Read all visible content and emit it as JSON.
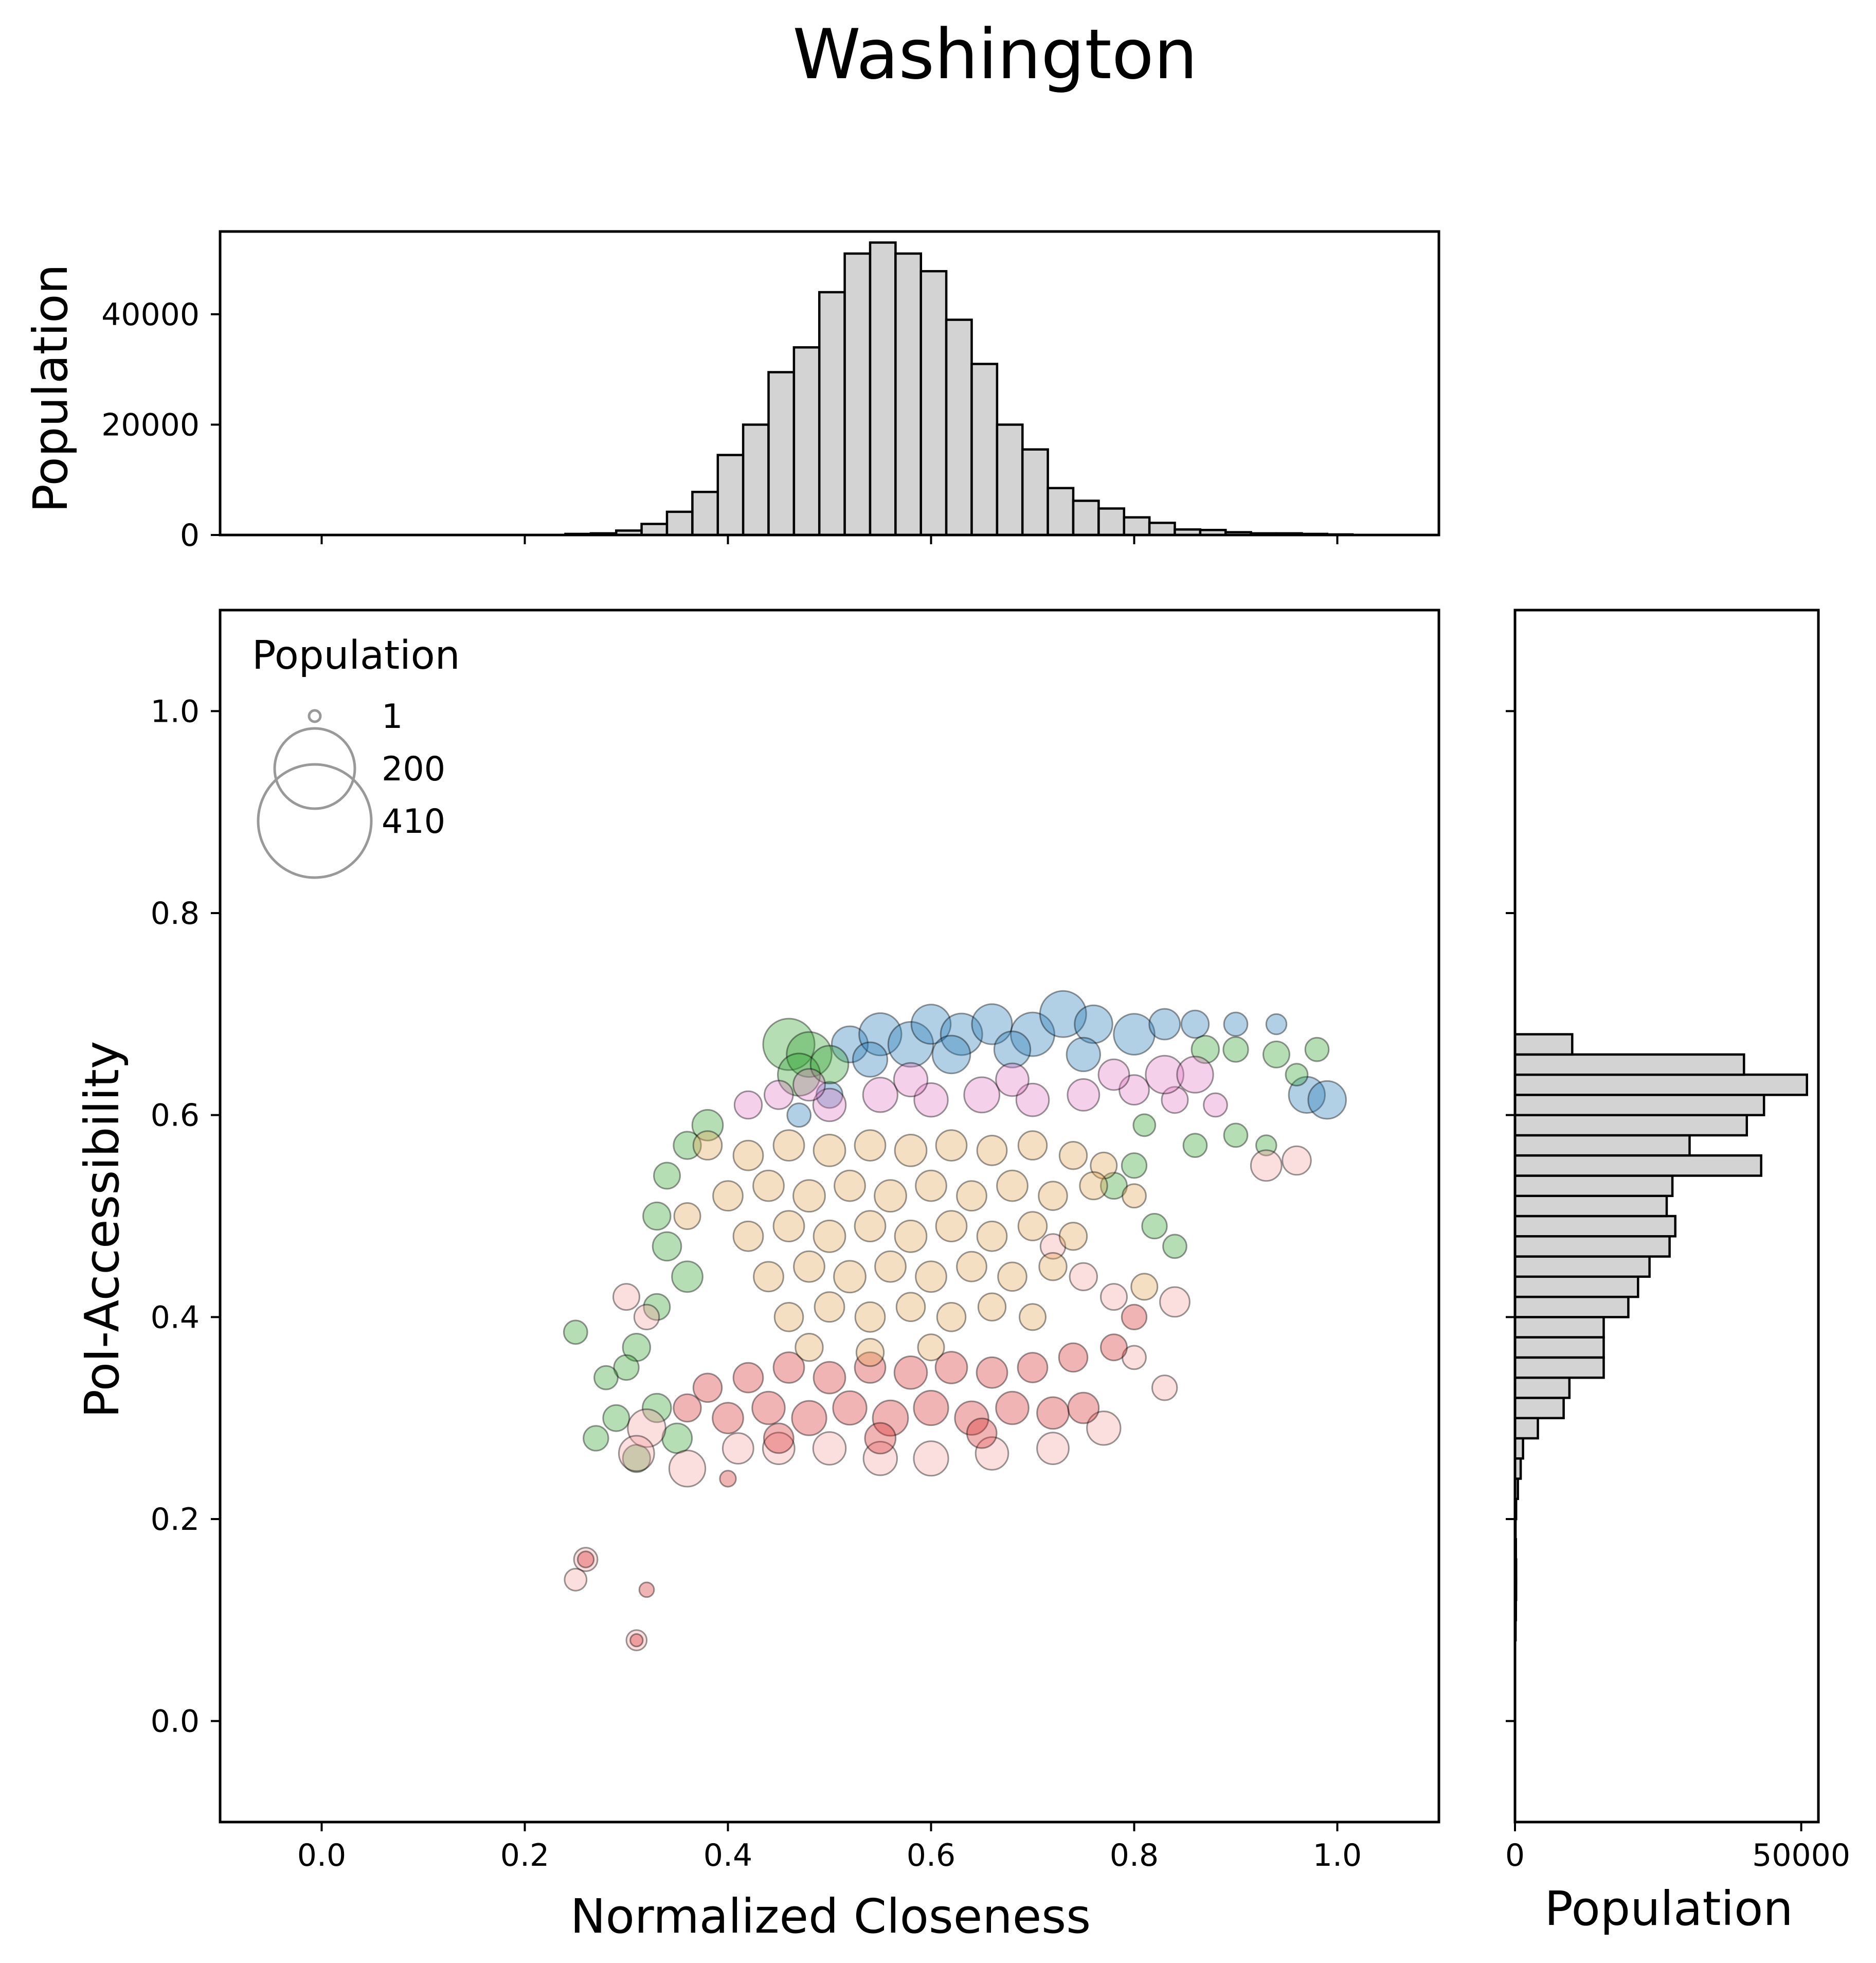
{
  "chart_data": {
    "type": "scatter",
    "title": "Washington",
    "xlabel": "Normalized Closeness",
    "ylabel": "PoI-Accessibility",
    "xlim": [
      -0.1,
      1.1
    ],
    "ylim": [
      -0.1,
      1.1
    ],
    "xticks": [
      "0.0",
      "0.2",
      "0.4",
      "0.6",
      "0.8",
      "1.0"
    ],
    "yticks": [
      "0.0",
      "0.2",
      "0.4",
      "0.6",
      "0.8",
      "1.0"
    ],
    "size_legend": {
      "title": "Population",
      "placement": "top-left",
      "entries": [
        {
          "label": "1",
          "value": 1
        },
        {
          "label": "200",
          "value": 200
        },
        {
          "label": "410",
          "value": 410
        }
      ]
    },
    "series": [
      {
        "color": "#1f77b4",
        "points": [
          [
            0.52,
            0.67,
            180
          ],
          [
            0.55,
            0.68,
            260
          ],
          [
            0.58,
            0.67,
            300
          ],
          [
            0.6,
            0.69,
            220
          ],
          [
            0.63,
            0.68,
            250
          ],
          [
            0.66,
            0.69,
            230
          ],
          [
            0.7,
            0.68,
            280
          ],
          [
            0.73,
            0.7,
            320
          ],
          [
            0.76,
            0.69,
            200
          ],
          [
            0.8,
            0.68,
            240
          ],
          [
            0.83,
            0.69,
            120
          ],
          [
            0.86,
            0.69,
            90
          ],
          [
            0.9,
            0.69,
            60
          ],
          [
            0.94,
            0.69,
            40
          ],
          [
            0.54,
            0.655,
            160
          ],
          [
            0.62,
            0.66,
            200
          ],
          [
            0.68,
            0.665,
            180
          ],
          [
            0.75,
            0.66,
            150
          ],
          [
            0.97,
            0.62,
            180
          ],
          [
            0.99,
            0.615,
            200
          ],
          [
            0.47,
            0.6,
            60
          ],
          [
            0.5,
            0.62,
            80
          ]
        ]
      },
      {
        "color": "#2ca02c",
        "points": [
          [
            0.46,
            0.67,
            410
          ],
          [
            0.48,
            0.66,
            300
          ],
          [
            0.47,
            0.64,
            260
          ],
          [
            0.5,
            0.65,
            200
          ],
          [
            0.87,
            0.665,
            90
          ],
          [
            0.9,
            0.665,
            70
          ],
          [
            0.94,
            0.66,
            80
          ],
          [
            0.98,
            0.665,
            60
          ],
          [
            0.96,
            0.64,
            50
          ],
          [
            0.9,
            0.58,
            60
          ],
          [
            0.93,
            0.57,
            40
          ],
          [
            0.38,
            0.59,
            120
          ],
          [
            0.36,
            0.57,
            90
          ],
          [
            0.34,
            0.54,
            80
          ],
          [
            0.33,
            0.5,
            90
          ],
          [
            0.34,
            0.47,
            100
          ],
          [
            0.36,
            0.44,
            120
          ],
          [
            0.33,
            0.41,
            80
          ],
          [
            0.31,
            0.37,
            90
          ],
          [
            0.3,
            0.35,
            70
          ],
          [
            0.28,
            0.34,
            60
          ],
          [
            0.29,
            0.3,
            80
          ],
          [
            0.27,
            0.28,
            70
          ],
          [
            0.25,
            0.385,
            60
          ],
          [
            0.31,
            0.26,
            90
          ],
          [
            0.35,
            0.28,
            110
          ],
          [
            0.33,
            0.31,
            100
          ],
          [
            0.82,
            0.49,
            70
          ],
          [
            0.84,
            0.47,
            60
          ],
          [
            0.78,
            0.53,
            80
          ],
          [
            0.8,
            0.55,
            70
          ],
          [
            0.86,
            0.57,
            60
          ],
          [
            0.81,
            0.59,
            50
          ]
        ]
      },
      {
        "color": "#e377c2",
        "points": [
          [
            0.42,
            0.61,
            90
          ],
          [
            0.45,
            0.62,
            100
          ],
          [
            0.5,
            0.61,
            140
          ],
          [
            0.55,
            0.62,
            160
          ],
          [
            0.6,
            0.615,
            150
          ],
          [
            0.65,
            0.62,
            170
          ],
          [
            0.7,
            0.615,
            140
          ],
          [
            0.75,
            0.62,
            130
          ],
          [
            0.8,
            0.625,
            110
          ],
          [
            0.84,
            0.615,
            80
          ],
          [
            0.88,
            0.61,
            60
          ],
          [
            0.48,
            0.63,
            130
          ],
          [
            0.58,
            0.635,
            150
          ],
          [
            0.68,
            0.635,
            140
          ],
          [
            0.78,
            0.64,
            120
          ],
          [
            0.83,
            0.64,
            200
          ],
          [
            0.86,
            0.64,
            180
          ]
        ]
      },
      {
        "color": "#f4a0a0",
        "points": [
          [
            0.93,
            0.55,
            120
          ],
          [
            0.96,
            0.555,
            100
          ],
          [
            0.84,
            0.415,
            110
          ],
          [
            0.83,
            0.33,
            70
          ],
          [
            0.77,
            0.29,
            150
          ],
          [
            0.72,
            0.27,
            130
          ],
          [
            0.66,
            0.265,
            140
          ],
          [
            0.6,
            0.26,
            160
          ],
          [
            0.55,
            0.26,
            150
          ],
          [
            0.5,
            0.27,
            140
          ],
          [
            0.45,
            0.27,
            130
          ],
          [
            0.41,
            0.27,
            120
          ],
          [
            0.36,
            0.25,
            180
          ],
          [
            0.32,
            0.29,
            200
          ],
          [
            0.31,
            0.265,
            170
          ],
          [
            0.3,
            0.42,
            80
          ],
          [
            0.32,
            0.4,
            70
          ],
          [
            0.8,
            0.36,
            60
          ],
          [
            0.26,
            0.16,
            60
          ],
          [
            0.25,
            0.14,
            50
          ],
          [
            0.31,
            0.08,
            40
          ],
          [
            0.75,
            0.44,
            90
          ],
          [
            0.78,
            0.42,
            80
          ],
          [
            0.72,
            0.47,
            70
          ]
        ]
      },
      {
        "color": "#d62728",
        "points": [
          [
            0.4,
            0.3,
            120
          ],
          [
            0.44,
            0.31,
            140
          ],
          [
            0.48,
            0.3,
            160
          ],
          [
            0.52,
            0.31,
            150
          ],
          [
            0.56,
            0.3,
            170
          ],
          [
            0.6,
            0.31,
            160
          ],
          [
            0.64,
            0.3,
            150
          ],
          [
            0.68,
            0.31,
            140
          ],
          [
            0.72,
            0.305,
            130
          ],
          [
            0.75,
            0.31,
            120
          ],
          [
            0.42,
            0.34,
            110
          ],
          [
            0.46,
            0.35,
            120
          ],
          [
            0.5,
            0.34,
            130
          ],
          [
            0.54,
            0.35,
            120
          ],
          [
            0.58,
            0.345,
            140
          ],
          [
            0.62,
            0.35,
            130
          ],
          [
            0.66,
            0.345,
            120
          ],
          [
            0.7,
            0.35,
            110
          ],
          [
            0.74,
            0.36,
            100
          ],
          [
            0.78,
            0.37,
            80
          ],
          [
            0.45,
            0.28,
            110
          ],
          [
            0.55,
            0.28,
            120
          ],
          [
            0.65,
            0.285,
            110
          ],
          [
            0.38,
            0.33,
            100
          ],
          [
            0.36,
            0.31,
            90
          ],
          [
            0.8,
            0.4,
            70
          ],
          [
            0.26,
            0.16,
            20
          ],
          [
            0.32,
            0.13,
            15
          ],
          [
            0.31,
            0.08,
            8
          ],
          [
            0.4,
            0.24,
            20
          ]
        ]
      },
      {
        "color": "#e1a250",
        "points": [
          [
            0.38,
            0.57,
            100
          ],
          [
            0.42,
            0.56,
            110
          ],
          [
            0.46,
            0.57,
            120
          ],
          [
            0.5,
            0.565,
            130
          ],
          [
            0.54,
            0.57,
            120
          ],
          [
            0.58,
            0.565,
            130
          ],
          [
            0.62,
            0.57,
            120
          ],
          [
            0.66,
            0.565,
            110
          ],
          [
            0.7,
            0.57,
            100
          ],
          [
            0.74,
            0.56,
            90
          ],
          [
            0.77,
            0.55,
            80
          ],
          [
            0.4,
            0.52,
            110
          ],
          [
            0.44,
            0.53,
            120
          ],
          [
            0.48,
            0.52,
            130
          ],
          [
            0.52,
            0.53,
            120
          ],
          [
            0.56,
            0.52,
            130
          ],
          [
            0.6,
            0.53,
            120
          ],
          [
            0.64,
            0.52,
            110
          ],
          [
            0.68,
            0.53,
            120
          ],
          [
            0.72,
            0.52,
            100
          ],
          [
            0.76,
            0.53,
            90
          ],
          [
            0.8,
            0.52,
            60
          ],
          [
            0.42,
            0.48,
            110
          ],
          [
            0.46,
            0.49,
            120
          ],
          [
            0.5,
            0.48,
            130
          ],
          [
            0.54,
            0.49,
            120
          ],
          [
            0.58,
            0.48,
            130
          ],
          [
            0.62,
            0.49,
            120
          ],
          [
            0.66,
            0.48,
            110
          ],
          [
            0.7,
            0.49,
            100
          ],
          [
            0.74,
            0.48,
            90
          ],
          [
            0.44,
            0.44,
            110
          ],
          [
            0.48,
            0.45,
            120
          ],
          [
            0.52,
            0.44,
            130
          ],
          [
            0.56,
            0.45,
            120
          ],
          [
            0.6,
            0.44,
            120
          ],
          [
            0.64,
            0.45,
            110
          ],
          [
            0.68,
            0.44,
            100
          ],
          [
            0.72,
            0.45,
            90
          ],
          [
            0.46,
            0.4,
            100
          ],
          [
            0.5,
            0.41,
            110
          ],
          [
            0.54,
            0.4,
            110
          ],
          [
            0.58,
            0.41,
            100
          ],
          [
            0.62,
            0.4,
            100
          ],
          [
            0.66,
            0.41,
            90
          ],
          [
            0.7,
            0.4,
            80
          ],
          [
            0.48,
            0.37,
            90
          ],
          [
            0.54,
            0.365,
            90
          ],
          [
            0.6,
            0.37,
            80
          ],
          [
            0.81,
            0.43,
            80
          ],
          [
            0.36,
            0.5,
            80
          ]
        ]
      }
    ]
  },
  "top_histogram": {
    "ylabel": "Population",
    "ylim": [
      0,
      55000
    ],
    "yticks": [
      "0",
      "20000",
      "40000"
    ],
    "bin_width": 0.025,
    "bins_start": [
      0.24,
      0.265,
      0.29,
      0.315,
      0.34,
      0.365,
      0.39,
      0.415,
      0.44,
      0.465,
      0.49,
      0.515,
      0.54,
      0.565,
      0.59,
      0.615,
      0.64,
      0.665,
      0.69,
      0.715,
      0.74,
      0.765,
      0.79,
      0.815,
      0.84,
      0.865,
      0.89,
      0.915,
      0.94,
      0.965,
      0.99
    ],
    "counts": [
      200,
      300,
      800,
      2000,
      4200,
      7800,
      14500,
      20000,
      29500,
      34000,
      44000,
      51000,
      53000,
      51000,
      47800,
      39000,
      31000,
      20000,
      15500,
      8500,
      6200,
      4800,
      3200,
      2200,
      1000,
      900,
      500,
      300,
      300,
      200,
      100
    ]
  },
  "right_histogram": {
    "xlabel": "Population",
    "xlim": [
      0,
      53000
    ],
    "xticks": [
      "0",
      "50000"
    ],
    "bin_height": 0.02,
    "bins_start": [
      0.08,
      0.1,
      0.12,
      0.14,
      0.16,
      0.18,
      0.2,
      0.22,
      0.24,
      0.26,
      0.28,
      0.3,
      0.32,
      0.34,
      0.36,
      0.38,
      0.4,
      0.42,
      0.44,
      0.46,
      0.48,
      0.5,
      0.52,
      0.54,
      0.56,
      0.58,
      0.6,
      0.62,
      0.64,
      0.66,
      0.68
    ],
    "counts": [
      100,
      150,
      200,
      200,
      150,
      100,
      200,
      500,
      1000,
      1400,
      4000,
      8500,
      9500,
      15500,
      15500,
      15500,
      19800,
      21500,
      23500,
      27000,
      28000,
      26500,
      27500,
      43000,
      30500,
      40500,
      43500,
      51000,
      40000,
      10000,
      0
    ]
  }
}
